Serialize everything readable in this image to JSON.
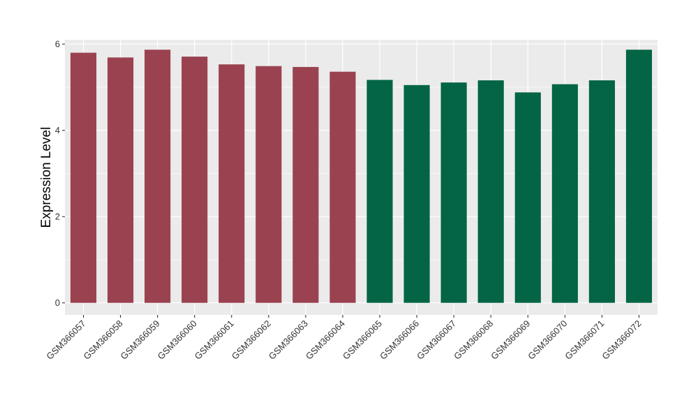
{
  "chart_data": {
    "type": "bar",
    "title": "",
    "xlabel": "",
    "ylabel": "Expression Level",
    "ylim": [
      -0.28,
      6.1
    ],
    "yticks": [
      0,
      2,
      4,
      6
    ],
    "grid": true,
    "categories": [
      "GSM366057",
      "GSM366058",
      "GSM366059",
      "GSM366060",
      "GSM366061",
      "GSM366062",
      "GSM366063",
      "GSM366064",
      "GSM366065",
      "GSM366066",
      "GSM366067",
      "GSM366068",
      "GSM366069",
      "GSM366070",
      "GSM366071",
      "GSM366072"
    ],
    "values": [
      5.8,
      5.69,
      5.87,
      5.71,
      5.53,
      5.49,
      5.47,
      5.36,
      5.17,
      5.05,
      5.11,
      5.16,
      4.88,
      5.07,
      5.16,
      5.87
    ],
    "groups": [
      0,
      0,
      0,
      0,
      0,
      0,
      0,
      0,
      1,
      1,
      1,
      1,
      1,
      1,
      1,
      1
    ],
    "colors": {
      "group_0": "#9a4250",
      "group_1": "#036545",
      "panel": "#ebebeb",
      "grid": "#ffffff",
      "tick": "#333333"
    }
  }
}
